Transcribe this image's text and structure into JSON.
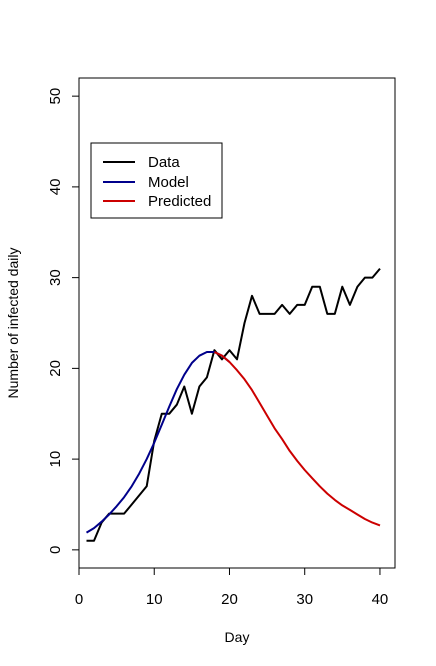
{
  "chart_data": {
    "type": "line",
    "xlabel": "Day",
    "ylabel": "Number of infected daily",
    "xlim": [
      0,
      42
    ],
    "ylim": [
      -2,
      52
    ],
    "x_ticks": [
      0,
      10,
      20,
      30,
      40
    ],
    "x_tick_labels": [
      "0",
      "10",
      "20",
      "30",
      "40"
    ],
    "y_ticks": [
      0,
      10,
      20,
      30,
      40,
      50
    ],
    "y_tick_labels": [
      "0",
      "10",
      "20",
      "30",
      "40",
      "50"
    ],
    "grid": false,
    "legend_position": "top-left",
    "series": [
      {
        "name": "Data",
        "color": "#000000",
        "x": [
          1,
          2,
          3,
          4,
          5,
          6,
          7,
          8,
          9,
          10,
          11,
          12,
          13,
          14,
          15,
          16,
          17,
          18,
          19,
          20,
          21,
          22,
          23,
          24,
          25,
          26,
          27,
          28,
          29,
          30,
          31,
          32,
          33,
          34,
          35,
          36,
          37,
          38,
          39,
          40
        ],
        "y": [
          1,
          1,
          3,
          4,
          4,
          4,
          5,
          6,
          7,
          12,
          15,
          15,
          16,
          18,
          15,
          18,
          19,
          22,
          21,
          22,
          21,
          25,
          28,
          26,
          26,
          26,
          27,
          26,
          27,
          27,
          29,
          29,
          26,
          26,
          29,
          27,
          29,
          30,
          30,
          31
        ]
      },
      {
        "name": "Model",
        "color": "#00008b",
        "x": [
          1,
          2,
          3,
          4,
          5,
          6,
          7,
          8,
          9,
          10,
          11,
          12,
          13,
          14,
          15,
          16,
          17,
          18,
          19,
          20
        ],
        "y": [
          1.9,
          2.4,
          3.1,
          3.9,
          4.8,
          5.8,
          7.0,
          8.4,
          10.0,
          11.8,
          13.8,
          15.8,
          17.7,
          19.3,
          20.6,
          21.4,
          21.8,
          21.8,
          21.4,
          20.7
        ]
      },
      {
        "name": "Predicted",
        "color": "#cc0000",
        "x": [
          18,
          19,
          20,
          21,
          22,
          23,
          24,
          25,
          26,
          27,
          28,
          29,
          30,
          31,
          32,
          33,
          34,
          35,
          36,
          37,
          38,
          39,
          40
        ],
        "y": [
          21.8,
          21.4,
          20.7,
          19.8,
          18.8,
          17.6,
          16.2,
          14.8,
          13.4,
          12.2,
          10.9,
          9.8,
          8.8,
          7.9,
          7.0,
          6.2,
          5.5,
          4.9,
          4.4,
          3.9,
          3.4,
          3.0,
          2.7
        ]
      }
    ]
  }
}
